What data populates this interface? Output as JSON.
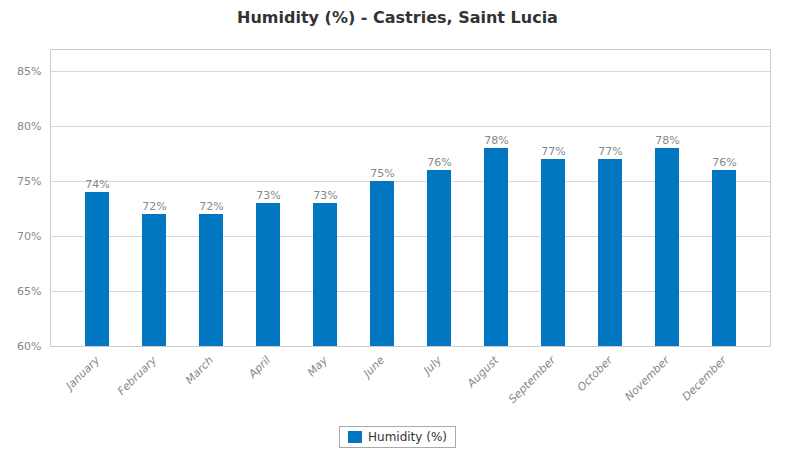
{
  "chart_data": {
    "type": "bar",
    "title": "Humidity (%) - Castries, Saint Lucia",
    "categories": [
      "January",
      "February",
      "March",
      "April",
      "May",
      "June",
      "July",
      "August",
      "September",
      "October",
      "November",
      "December"
    ],
    "series": [
      {
        "name": "Humidity (%)",
        "color": "#0077C0",
        "values": [
          74,
          72,
          72,
          73,
          73,
          75,
          76,
          78,
          77,
          77,
          78,
          76
        ],
        "value_labels": [
          "74%",
          "72%",
          "72%",
          "73%",
          "73%",
          "75%",
          "76%",
          "78%",
          "77%",
          "77%",
          "78%",
          "76%"
        ]
      }
    ],
    "ylim": [
      60,
      87
    ],
    "yticks": [
      {
        "value": 60,
        "label": "60%"
      },
      {
        "value": 65,
        "label": "65%"
      },
      {
        "value": 70,
        "label": "70%"
      },
      {
        "value": 75,
        "label": "75%"
      },
      {
        "value": 80,
        "label": "80%"
      },
      {
        "value": 85,
        "label": "85%"
      }
    ],
    "grid": true,
    "data_labels": true,
    "legend": "bottom"
  }
}
